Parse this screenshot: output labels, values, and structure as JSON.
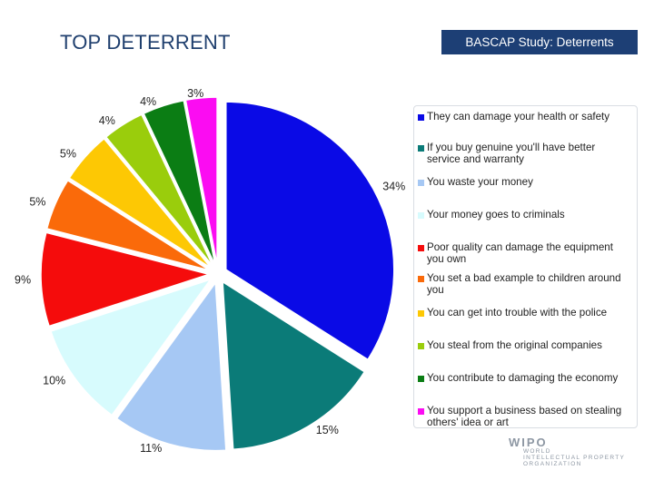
{
  "slide": {
    "title": "TOP DETERRENT",
    "badge": "BASCAP Study:  Deterrents"
  },
  "chart_data": {
    "type": "pie",
    "title": "",
    "slices": [
      {
        "label": "They can damage your health or safety",
        "value": 34,
        "display": "34%",
        "color": "#0a0ae6"
      },
      {
        "label": "If you buy genuine you'll have better service and warranty",
        "value": 15,
        "display": "15%",
        "color": "#0b7b78"
      },
      {
        "label": "You waste your money",
        "value": 11,
        "display": "11%",
        "color": "#a6c8f4"
      },
      {
        "label": "Your money goes to criminals",
        "value": 10,
        "display": "10%",
        "color": "#d7fbfd"
      },
      {
        "label": "Poor quality can damage the equipment you own",
        "value": 9,
        "display": "9%",
        "color": "#f50c0c"
      },
      {
        "label": "You set a bad example to children around you",
        "value": 5,
        "display": "5%",
        "color": "#fa6a0a"
      },
      {
        "label": "You can get into trouble with the police",
        "value": 5,
        "display": "5%",
        "color": "#fdc804"
      },
      {
        "label": "You steal from the original companies",
        "value": 4,
        "display": "4%",
        "color": "#9acd0c"
      },
      {
        "label": "You contribute to damaging the economy",
        "value": 4,
        "display": "4%",
        "color": "#0b7d14"
      },
      {
        "label": "You support a business based on stealing others' idea or art",
        "value": 3,
        "display": "3%",
        "color": "#fb0cf2"
      }
    ],
    "legend_position": "right"
  },
  "legend": {
    "items": [
      {
        "lines": [
          "They can damage your health or safety"
        ]
      },
      {
        "lines": [
          "If you buy genuine you'll have better",
          "service and warranty"
        ]
      },
      {
        "lines": [
          "You waste your money"
        ]
      },
      {
        "lines": [
          "Your money goes to criminals"
        ]
      },
      {
        "lines": [
          "Poor quality can damage the equipment",
          "you own"
        ]
      },
      {
        "lines": [
          "You set a bad example to children around",
          "you"
        ]
      },
      {
        "lines": [
          "You can get into trouble with the police"
        ]
      },
      {
        "lines": [
          "You steal from the original companies"
        ]
      },
      {
        "lines": [
          "You contribute to damaging the economy"
        ]
      },
      {
        "lines": [
          "You support a business based on stealing",
          "others' idea or art"
        ]
      }
    ]
  },
  "logo": {
    "main": "WIPO",
    "sub": [
      "WORLD",
      "INTELLECTUAL PROPERTY",
      "ORGANIZATION"
    ]
  }
}
